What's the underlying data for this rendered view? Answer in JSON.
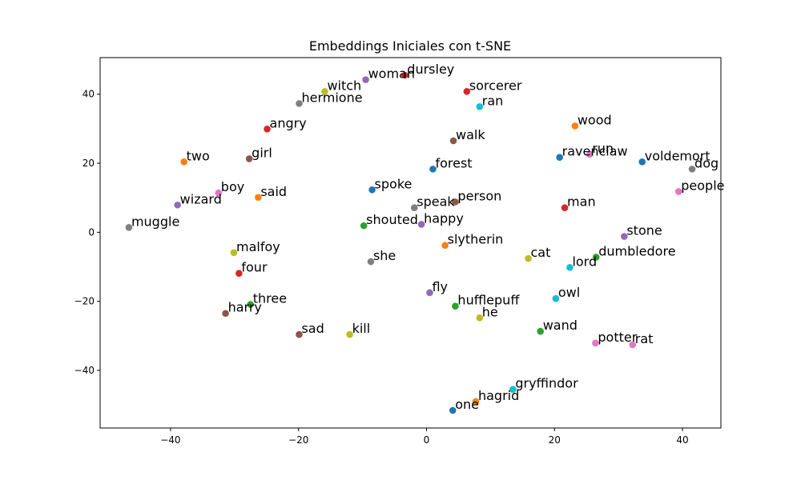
{
  "chart_data": {
    "type": "scatter",
    "title": "Embeddings Iniciales con t-SNE",
    "xlabel": "",
    "ylabel": "",
    "xlim": [
      -51,
      46
    ],
    "ylim": [
      -56.7,
      50.6
    ],
    "xticks": [
      -40,
      -20,
      0,
      20,
      40
    ],
    "yticks": [
      -40,
      -20,
      0,
      20,
      40
    ],
    "xtick_labels": [
      "−40",
      "−20",
      "0",
      "20",
      "40"
    ],
    "ytick_labels": [
      "−40",
      "−20",
      "0",
      "20",
      "40"
    ],
    "grid": false,
    "legend": "none",
    "points": [
      {
        "label": "dursley",
        "x": -3.4,
        "y": 45.5,
        "color": "#d62728"
      },
      {
        "label": "woman",
        "x": -9.5,
        "y": 44.2,
        "color": "#9467bd"
      },
      {
        "label": "witch",
        "x": -15.9,
        "y": 40.8,
        "color": "#bcbd22"
      },
      {
        "label": "sorcerer",
        "x": 6.3,
        "y": 40.8,
        "color": "#d62728"
      },
      {
        "label": "hermione",
        "x": -19.9,
        "y": 37.3,
        "color": "#7f7f7f"
      },
      {
        "label": "ran",
        "x": 8.3,
        "y": 36.4,
        "color": "#17becf"
      },
      {
        "label": "wood",
        "x": 23.2,
        "y": 30.8,
        "color": "#ff7f0e"
      },
      {
        "label": "angry",
        "x": -24.9,
        "y": 29.9,
        "color": "#d62728"
      },
      {
        "label": "walk",
        "x": 4.2,
        "y": 26.5,
        "color": "#8c564b"
      },
      {
        "label": "run",
        "x": 25.5,
        "y": 22.6,
        "color": "#e377c2"
      },
      {
        "label": "ravenclaw",
        "x": 20.8,
        "y": 21.7,
        "color": "#1f77b4"
      },
      {
        "label": "girl",
        "x": -27.7,
        "y": 21.3,
        "color": "#8c564b"
      },
      {
        "label": "two",
        "x": -37.9,
        "y": 20.4,
        "color": "#ff7f0e"
      },
      {
        "label": "voldemort",
        "x": 33.7,
        "y": 20.4,
        "color": "#1f77b4"
      },
      {
        "label": "dog",
        "x": 41.5,
        "y": 18.3,
        "color": "#7f7f7f"
      },
      {
        "label": "forest",
        "x": 1.0,
        "y": 18.3,
        "color": "#1f77b4"
      },
      {
        "label": "spoke",
        "x": -8.5,
        "y": 12.3,
        "color": "#1f77b4"
      },
      {
        "label": "people",
        "x": 39.4,
        "y": 11.8,
        "color": "#e377c2"
      },
      {
        "label": "boy",
        "x": -32.5,
        "y": 11.4,
        "color": "#e377c2"
      },
      {
        "label": "said",
        "x": -26.3,
        "y": 10.1,
        "color": "#ff7f0e"
      },
      {
        "label": "person",
        "x": 4.5,
        "y": 8.8,
        "color": "#8c564b"
      },
      {
        "label": "wizard",
        "x": -38.9,
        "y": 7.9,
        "color": "#9467bd"
      },
      {
        "label": "speak",
        "x": -1.9,
        "y": 7.1,
        "color": "#7f7f7f"
      },
      {
        "label": "man",
        "x": 21.6,
        "y": 7.1,
        "color": "#d62728"
      },
      {
        "label": "happy",
        "x": -0.8,
        "y": 2.3,
        "color": "#9467bd"
      },
      {
        "label": "shouted",
        "x": -9.8,
        "y": 1.9,
        "color": "#2ca02c"
      },
      {
        "label": "muggle",
        "x": -46.5,
        "y": 1.4,
        "color": "#7f7f7f"
      },
      {
        "label": "stone",
        "x": 30.9,
        "y": -1.2,
        "color": "#9467bd"
      },
      {
        "label": "slytherin",
        "x": 2.9,
        "y": -3.8,
        "color": "#ff7f0e"
      },
      {
        "label": "malfoy",
        "x": -30.1,
        "y": -5.9,
        "color": "#bcbd22"
      },
      {
        "label": "dumbledore",
        "x": 26.5,
        "y": -7.2,
        "color": "#2ca02c"
      },
      {
        "label": "cat",
        "x": 15.9,
        "y": -7.6,
        "color": "#bcbd22"
      },
      {
        "label": "she",
        "x": -8.7,
        "y": -8.5,
        "color": "#7f7f7f"
      },
      {
        "label": "lord",
        "x": 22.4,
        "y": -10.2,
        "color": "#17becf"
      },
      {
        "label": "four",
        "x": -29.3,
        "y": -11.9,
        "color": "#d62728"
      },
      {
        "label": "fly",
        "x": 0.5,
        "y": -17.5,
        "color": "#9467bd"
      },
      {
        "label": "owl",
        "x": 20.2,
        "y": -19.2,
        "color": "#17becf"
      },
      {
        "label": "three",
        "x": -27.5,
        "y": -20.9,
        "color": "#2ca02c"
      },
      {
        "label": "hufflepuff",
        "x": 4.5,
        "y": -21.4,
        "color": "#2ca02c"
      },
      {
        "label": "harry",
        "x": -31.4,
        "y": -23.5,
        "color": "#8c564b"
      },
      {
        "label": "he",
        "x": 8.3,
        "y": -24.8,
        "color": "#bcbd22"
      },
      {
        "label": "wand",
        "x": 17.8,
        "y": -28.7,
        "color": "#2ca02c"
      },
      {
        "label": "kill",
        "x": -12.0,
        "y": -29.6,
        "color": "#bcbd22"
      },
      {
        "label": "sad",
        "x": -19.9,
        "y": -29.6,
        "color": "#8c564b"
      },
      {
        "label": "potter",
        "x": 26.4,
        "y": -32.1,
        "color": "#e377c2"
      },
      {
        "label": "rat",
        "x": 32.2,
        "y": -32.6,
        "color": "#e377c2"
      },
      {
        "label": "gryffindor",
        "x": 13.5,
        "y": -45.5,
        "color": "#17becf"
      },
      {
        "label": "hagrid",
        "x": 7.7,
        "y": -49.0,
        "color": "#ff7f0e"
      },
      {
        "label": "one",
        "x": 4.1,
        "y": -51.6,
        "color": "#1f77b4"
      }
    ]
  }
}
